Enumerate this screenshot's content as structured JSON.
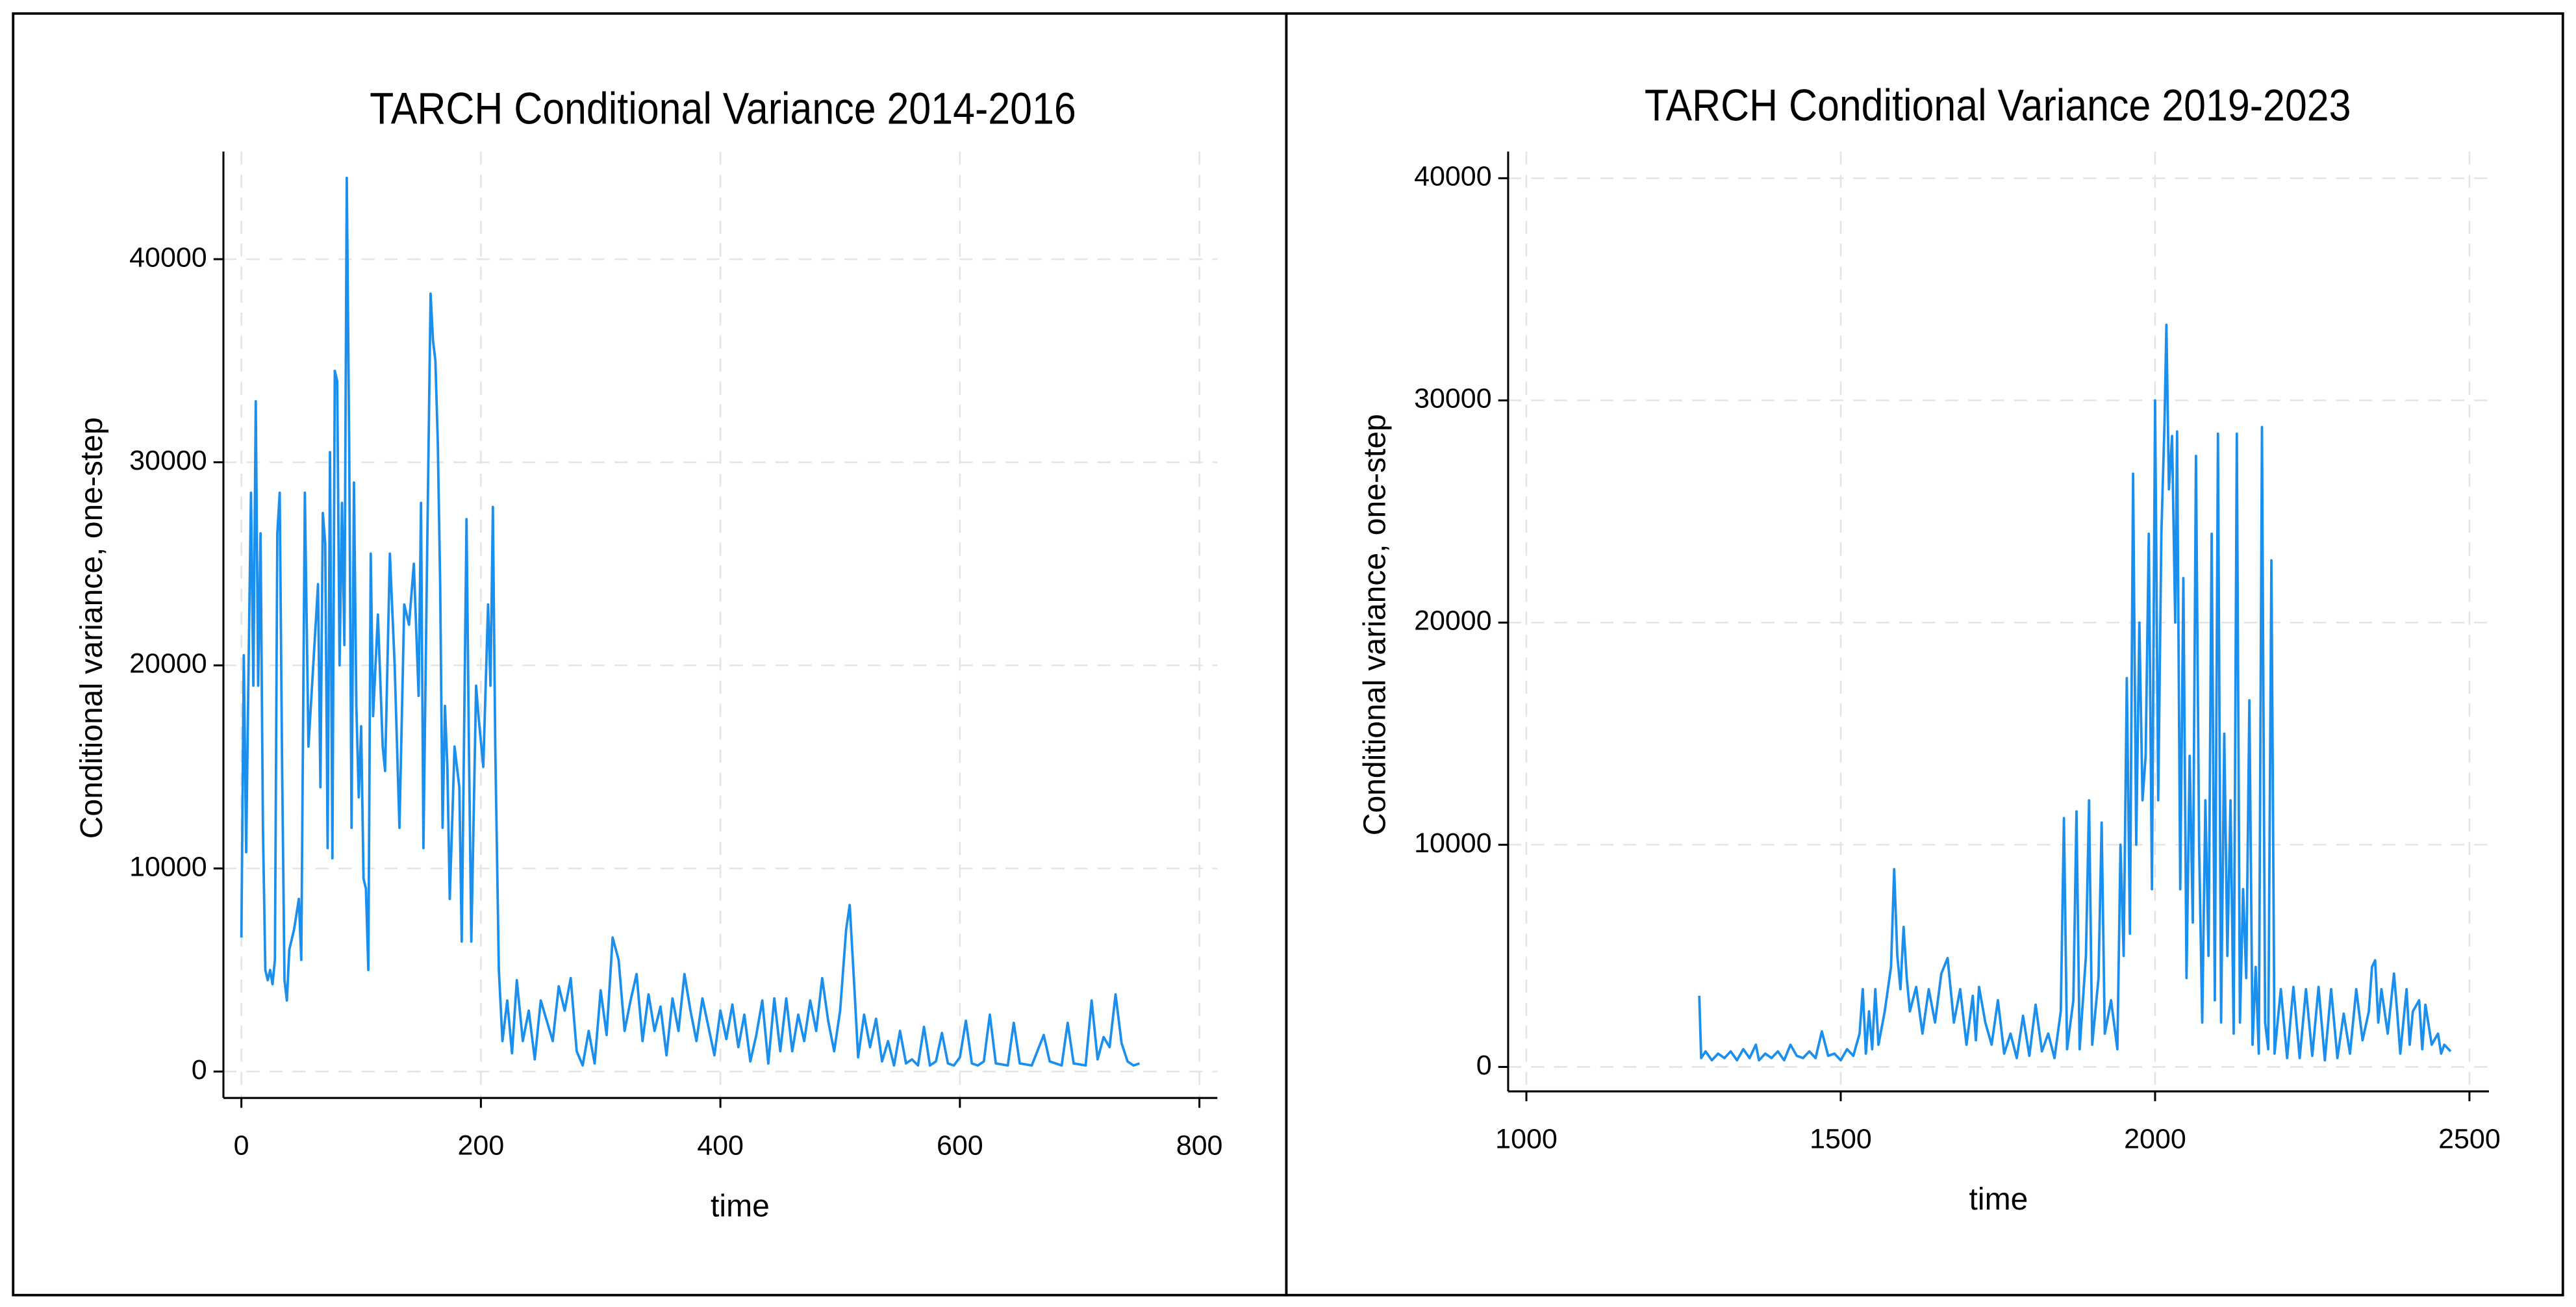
{
  "chart_data": [
    {
      "type": "line",
      "title": "TARCH Conditional Variance 2014-2016",
      "xlabel": "time",
      "ylabel": "Conditional variance, one-step",
      "color": "#1a8fee",
      "grid": true,
      "xlim": [
        -15,
        815
      ],
      "ylim": [
        -1300,
        45300
      ],
      "xticks": [
        0,
        200,
        400,
        600,
        800
      ],
      "yticks": [
        0,
        10000,
        20000,
        30000,
        40000
      ],
      "x": [
        0,
        2,
        4,
        6,
        8,
        10,
        12,
        14,
        16,
        18,
        20,
        22,
        24,
        26,
        28,
        30,
        32,
        34,
        36,
        38,
        40,
        44,
        48,
        50,
        53,
        56,
        60,
        64,
        66,
        68,
        70,
        72,
        74,
        76,
        78,
        80,
        82,
        84,
        86,
        88,
        90,
        92,
        94,
        96,
        98,
        100,
        102,
        104,
        106,
        108,
        110,
        114,
        118,
        120,
        124,
        128,
        132,
        136,
        140,
        144,
        148,
        150,
        152,
        155,
        158,
        160,
        162,
        164,
        166,
        168,
        170,
        172,
        174,
        178,
        182,
        184,
        188,
        190,
        192,
        196,
        198,
        202,
        206,
        208,
        210,
        212,
        215,
        218,
        222,
        226,
        230,
        235,
        240,
        245,
        250,
        255,
        260,
        265,
        270,
        275,
        280,
        285,
        290,
        295,
        300,
        305,
        310,
        315,
        320,
        325,
        330,
        335,
        340,
        345,
        350,
        355,
        360,
        365,
        370,
        375,
        380,
        385,
        390,
        395,
        400,
        405,
        410,
        415,
        420,
        425,
        430,
        435,
        440,
        445,
        450,
        455,
        460,
        465,
        470,
        475,
        480,
        485,
        490,
        495,
        500,
        505,
        508,
        512,
        515,
        520,
        525,
        530,
        535,
        540,
        545,
        550,
        555,
        560,
        565,
        570,
        575,
        580,
        585,
        590,
        595,
        600,
        605,
        610,
        615,
        620,
        625,
        630,
        640,
        645,
        650,
        660,
        670,
        675,
        685,
        690,
        695,
        705,
        710,
        715,
        720,
        725,
        730,
        735,
        740,
        745,
        750
      ],
      "values": [
        6600,
        20500,
        10800,
        20000,
        28500,
        19000,
        33000,
        19000,
        26500,
        12000,
        5000,
        4500,
        5000,
        4300,
        5500,
        26500,
        28500,
        15000,
        4500,
        3500,
        6000,
        7000,
        8500,
        5500,
        28500,
        16000,
        20000,
        24000,
        14000,
        27500,
        26000,
        11000,
        30500,
        10500,
        34500,
        34000,
        20000,
        28000,
        21000,
        44000,
        31000,
        12000,
        29000,
        18000,
        13500,
        17000,
        9500,
        9000,
        5000,
        25500,
        17500,
        22500,
        16000,
        14800,
        25500,
        20000,
        12000,
        23000,
        22000,
        25000,
        18500,
        28000,
        11000,
        25000,
        38300,
        36000,
        35000,
        31000,
        24000,
        12000,
        18000,
        15000,
        8500,
        16000,
        14000,
        6400,
        27200,
        16000,
        6400,
        19000,
        17500,
        15000,
        23000,
        19000,
        27800,
        16000,
        5000,
        1500,
        3500,
        900,
        4500,
        1500,
        3000,
        600,
        3500,
        2500,
        1500,
        4200,
        3000,
        4600,
        1000,
        300,
        2000,
        400,
        4000,
        1800,
        6600,
        5500,
        2000,
        3500,
        4800,
        1500,
        3800,
        2000,
        3200,
        800,
        3600,
        2000,
        4800,
        3000,
        1500,
        3600,
        2200,
        800,
        3000,
        1600,
        3300,
        1200,
        2800,
        500,
        1800,
        3500,
        400,
        3600,
        1000,
        3600,
        1000,
        2800,
        1500,
        3500,
        2000,
        4600,
        2500,
        1000,
        3000,
        7000,
        8200,
        4000,
        700,
        2800,
        1200,
        2600,
        500,
        1500,
        300,
        2000,
        400,
        600,
        300,
        2200,
        300,
        500,
        1900,
        400,
        300,
        700,
        2500,
        400,
        300,
        500,
        2800,
        400,
        300,
        2400,
        400,
        300,
        1800,
        500,
        300,
        2400,
        400,
        300,
        3500,
        600,
        1700,
        1200,
        3800,
        1400,
        500,
        300,
        400
      ]
    },
    {
      "type": "line",
      "title": "TARCH Conditional Variance 2019-2023",
      "xlabel": "time",
      "ylabel": "Conditional variance, one-step",
      "color": "#1a8fee",
      "grid": true,
      "xlim": [
        971,
        2531
      ],
      "ylim": [
        -1100,
        41200
      ],
      "xticks": [
        1000,
        1500,
        2000,
        2500
      ],
      "yticks": [
        0,
        10000,
        20000,
        30000,
        40000
      ],
      "x": [
        1275,
        1278,
        1285,
        1295,
        1305,
        1315,
        1325,
        1335,
        1345,
        1355,
        1365,
        1370,
        1380,
        1390,
        1400,
        1410,
        1420,
        1430,
        1440,
        1450,
        1460,
        1470,
        1480,
        1490,
        1500,
        1510,
        1520,
        1530,
        1535,
        1540,
        1545,
        1550,
        1555,
        1560,
        1570,
        1580,
        1585,
        1590,
        1595,
        1600,
        1605,
        1610,
        1620,
        1630,
        1640,
        1650,
        1660,
        1670,
        1680,
        1690,
        1700,
        1710,
        1715,
        1720,
        1730,
        1740,
        1750,
        1760,
        1770,
        1780,
        1790,
        1800,
        1810,
        1820,
        1830,
        1840,
        1850,
        1855,
        1860,
        1870,
        1875,
        1880,
        1890,
        1895,
        1900,
        1910,
        1915,
        1920,
        1930,
        1940,
        1945,
        1950,
        1955,
        1960,
        1965,
        1970,
        1975,
        1980,
        1985,
        1990,
        1995,
        2000,
        2005,
        2010,
        2015,
        2018,
        2022,
        2027,
        2032,
        2035,
        2040,
        2045,
        2050,
        2055,
        2060,
        2065,
        2070,
        2075,
        2080,
        2085,
        2090,
        2095,
        2100,
        2105,
        2110,
        2115,
        2120,
        2125,
        2130,
        2135,
        2140,
        2145,
        2150,
        2155,
        2160,
        2165,
        2170,
        2175,
        2180,
        2185,
        2190,
        2200,
        2210,
        2220,
        2230,
        2240,
        2250,
        2260,
        2270,
        2280,
        2290,
        2300,
        2310,
        2320,
        2330,
        2340,
        2345,
        2350,
        2355,
        2360,
        2370,
        2380,
        2385,
        2390,
        2400,
        2405,
        2410,
        2420,
        2425,
        2430,
        2440,
        2450,
        2455,
        2460,
        2470
      ],
      "values": [
        3200,
        400,
        700,
        300,
        600,
        400,
        700,
        300,
        800,
        400,
        1000,
        300,
        600,
        400,
        700,
        300,
        1000,
        500,
        400,
        700,
        400,
        1600,
        500,
        600,
        300,
        800,
        500,
        1500,
        3500,
        600,
        2500,
        800,
        3500,
        1000,
        2500,
        4500,
        8900,
        5000,
        3500,
        6300,
        4000,
        2500,
        3600,
        1500,
        3500,
        2000,
        4200,
        4900,
        2000,
        3500,
        1000,
        3200,
        1200,
        3600,
        2000,
        1000,
        3000,
        600,
        1500,
        400,
        2300,
        500,
        2800,
        700,
        1500,
        400,
        2500,
        11200,
        800,
        3000,
        11500,
        800,
        5000,
        12000,
        1000,
        4000,
        11000,
        1500,
        3000,
        800,
        10000,
        5000,
        17500,
        6000,
        26700,
        10000,
        20000,
        12000,
        14000,
        24000,
        8000,
        30000,
        12000,
        24000,
        29000,
        33400,
        26000,
        28400,
        20000,
        28600,
        8000,
        22000,
        4000,
        14000,
        6500,
        27500,
        10000,
        2000,
        12000,
        5000,
        24000,
        3000,
        28500,
        2000,
        15000,
        5000,
        12000,
        1500,
        28500,
        2000,
        8000,
        4000,
        16500,
        1000,
        4500,
        600,
        28800,
        2000,
        800,
        22800,
        600,
        3500,
        400,
        3600,
        400,
        3500,
        500,
        3600,
        300,
        3500,
        400,
        2400,
        600,
        3500,
        1200,
        2500,
        4500,
        4800,
        2000,
        3500,
        1500,
        4200,
        2500,
        600,
        3500,
        1000,
        2500,
        3000,
        800,
        2800,
        1000,
        1500,
        600,
        1000,
        700
      ]
    }
  ]
}
